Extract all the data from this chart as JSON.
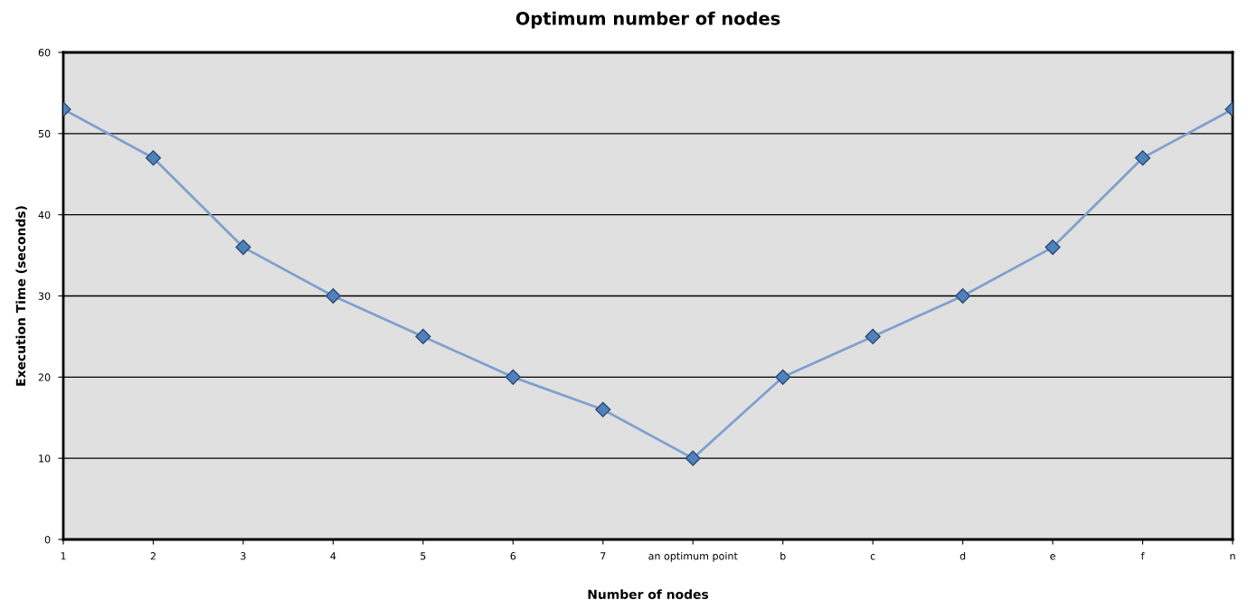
{
  "chart_data": {
    "type": "line",
    "title": "Optimum number of nodes",
    "xlabel": "Number of nodes",
    "ylabel": "Execution Time (seconds)",
    "categories": [
      "1",
      "2",
      "3",
      "4",
      "5",
      "6",
      "7",
      "an optimum point",
      "b",
      "c",
      "d",
      "e",
      "f",
      "n"
    ],
    "series": [
      {
        "color": "#4f81bd",
        "values": [
          53,
          47,
          36,
          30,
          25,
          20,
          16,
          10,
          20,
          25,
          30,
          36,
          47,
          53
        ]
      }
    ],
    "ylim": [
      0,
      60
    ],
    "yticks": [
      0,
      10,
      20,
      30,
      40,
      50,
      60
    ],
    "grid": "y",
    "marker": "diamond",
    "line_style": "solid"
  }
}
